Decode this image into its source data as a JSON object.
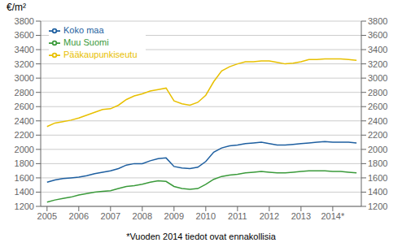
{
  "chart_data": {
    "type": "line",
    "ylabel": "€/m²",
    "footnote": "*Vuoden 2014 tiedot ovat ennakollisia",
    "x": [
      2005.0,
      2005.25,
      2005.5,
      2005.75,
      2006.0,
      2006.25,
      2006.5,
      2006.75,
      2007.0,
      2007.25,
      2007.5,
      2007.75,
      2008.0,
      2008.25,
      2008.5,
      2008.75,
      2009.0,
      2009.25,
      2009.5,
      2009.75,
      2010.0,
      2010.25,
      2010.5,
      2010.75,
      2011.0,
      2011.25,
      2011.5,
      2011.75,
      2012.0,
      2012.25,
      2012.5,
      2012.75,
      2013.0,
      2013.25,
      2013.5,
      2013.75,
      2014.0,
      2014.25,
      2014.5,
      2014.75
    ],
    "series": [
      {
        "name": "Pääkaupunkiseutu",
        "color": "#e8c000",
        "values": [
          2320,
          2370,
          2390,
          2410,
          2440,
          2480,
          2520,
          2560,
          2570,
          2620,
          2700,
          2750,
          2780,
          2820,
          2840,
          2860,
          2680,
          2640,
          2620,
          2660,
          2760,
          2950,
          3100,
          3160,
          3200,
          3230,
          3230,
          3240,
          3240,
          3220,
          3200,
          3210,
          3230,
          3260,
          3260,
          3270,
          3270,
          3270,
          3260,
          3250
        ]
      },
      {
        "name": "Koko maa",
        "color": "#1e5fa0",
        "values": [
          1540,
          1570,
          1590,
          1600,
          1610,
          1630,
          1660,
          1680,
          1700,
          1730,
          1780,
          1800,
          1800,
          1840,
          1870,
          1880,
          1760,
          1740,
          1730,
          1750,
          1830,
          1960,
          2020,
          2050,
          2060,
          2080,
          2090,
          2100,
          2080,
          2060,
          2060,
          2070,
          2080,
          2090,
          2100,
          2110,
          2100,
          2100,
          2100,
          2090
        ]
      },
      {
        "name": "Muu Suomi",
        "color": "#3a9a3a",
        "values": [
          1260,
          1290,
          1310,
          1330,
          1360,
          1380,
          1400,
          1410,
          1420,
          1450,
          1480,
          1490,
          1510,
          1540,
          1560,
          1550,
          1480,
          1450,
          1440,
          1450,
          1510,
          1580,
          1620,
          1640,
          1650,
          1670,
          1680,
          1690,
          1680,
          1670,
          1670,
          1680,
          1690,
          1700,
          1700,
          1700,
          1690,
          1690,
          1680,
          1670
        ]
      }
    ],
    "xlim": [
      2004.8,
      2014.9
    ],
    "xticks": [
      2005,
      2006,
      2007,
      2008,
      2009,
      2010,
      2011,
      2012,
      2013,
      {
        "value": 2014,
        "label": "2014*"
      }
    ],
    "ylim": [
      1200,
      3800
    ],
    "yticks": [
      1200,
      1400,
      1600,
      1800,
      2000,
      2200,
      2400,
      2600,
      2800,
      3000,
      3200,
      3400,
      3600,
      3800
    ],
    "y2lim": [
      1200,
      3800
    ],
    "y2ticks": [
      1200,
      1400,
      1600,
      1800,
      2000,
      2200,
      2400,
      2600,
      2800,
      3000,
      3200,
      3400,
      3600,
      3800
    ],
    "grid": true,
    "legend": "upper left"
  }
}
